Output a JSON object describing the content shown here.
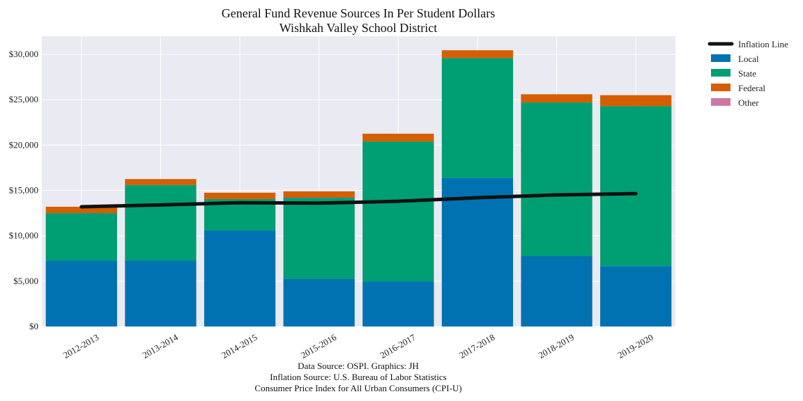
{
  "chart_data": {
    "type": "bar",
    "stacked": true,
    "title": "General Fund Revenue Sources In Per Student Dollars",
    "subtitle": "Wishkah Valley School District",
    "categories": [
      "2012-2013",
      "2013-2014",
      "2014-2015",
      "2015-2016",
      "2016-2017",
      "2017-2018",
      "2018-2019",
      "2019-2020"
    ],
    "series": [
      {
        "name": "Local",
        "color": "#0072b2",
        "values": [
          7250,
          7250,
          10600,
          5250,
          4950,
          16350,
          7750,
          6650
        ]
      },
      {
        "name": "State",
        "color": "#009e73",
        "values": [
          5250,
          8350,
          3450,
          8950,
          15450,
          13250,
          16950,
          17650
        ]
      },
      {
        "name": "Federal",
        "color": "#d55e00",
        "values": [
          700,
          650,
          700,
          700,
          850,
          850,
          900,
          1200
        ]
      },
      {
        "name": "Other",
        "color": "#cc79a7",
        "values": [
          0,
          0,
          0,
          0,
          0,
          0,
          0,
          0
        ]
      }
    ],
    "line": {
      "name": "Inflation Line",
      "color": "#111111",
      "values": [
        13200,
        13400,
        13650,
        13600,
        13800,
        14200,
        14500,
        14650
      ]
    },
    "ylim": [
      0,
      32000
    ],
    "yticks": [
      0,
      5000,
      10000,
      15000,
      20000,
      25000,
      30000
    ],
    "ytick_labels": [
      "$0",
      "$5,000",
      "$10,000",
      "$15,000",
      "$20,000",
      "$25,000",
      "$30,000"
    ],
    "xlabel": "",
    "ylabel": "",
    "grid": true,
    "legend_position": "outside-top-right",
    "legend_entries": [
      "Inflation Line",
      "Local",
      "State",
      "Federal",
      "Other"
    ],
    "footer": [
      "Data Source: OSPI. Graphics: JH",
      "Inflation Source: U.S. Bureau of Labor Statistics",
      "Consumer Price Index for All Urban Consumers (CPI-U)"
    ]
  }
}
